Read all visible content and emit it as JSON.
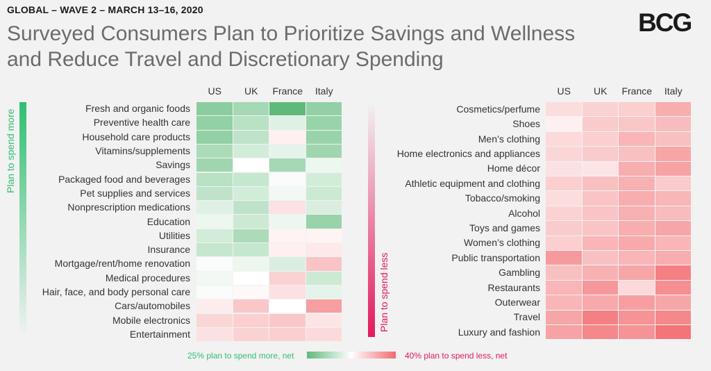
{
  "header": {
    "eyebrow": "GLOBAL – WAVE 2 – MARCH 13–16, 2020",
    "title_line1": "Surveyed Consumers Plan to Prioritize Savings and Wellness",
    "title_line2": "and Reduce Travel and Discretionary Spending",
    "logo": "BCG"
  },
  "colors": {
    "more": "#2fbf71",
    "less": "#e2195b",
    "more_strong": "#5fba7a",
    "less_strong": "#f26a6e",
    "neutral": "#ffffff"
  },
  "chart_data": [
    {
      "type": "heatmap",
      "side_label": "Plan to spend more",
      "columns": [
        "US",
        "UK",
        "France",
        "Italy"
      ],
      "rows": [
        "Fresh and organic foods",
        "Preventive health care",
        "Household care products",
        "Vitamins/supplements",
        "Savings",
        "Packaged food and beverages",
        "Pet supplies and services",
        "Nonprescription medications",
        "Education",
        "Utilities",
        "Insurance",
        "Mortgage/rent/home renovation",
        "Medical procedures",
        "Hair, face, and body personal care",
        "Cars/automobiles",
        "Mobile electronics",
        "Entertainment"
      ],
      "values": [
        [
          18,
          14,
          25,
          17
        ],
        [
          17,
          11,
          5,
          16
        ],
        [
          17,
          10,
          -4,
          16
        ],
        [
          13,
          7,
          4,
          15
        ],
        [
          15,
          0,
          14,
          3
        ],
        [
          11,
          9,
          1,
          7
        ],
        [
          10,
          7,
          2,
          8
        ],
        [
          5,
          10,
          -8,
          6
        ],
        [
          3,
          8,
          3,
          16
        ],
        [
          7,
          13,
          -3,
          -3
        ],
        [
          9,
          9,
          -4,
          -6
        ],
        [
          1,
          3,
          6,
          -16
        ],
        [
          2,
          0,
          -12,
          8
        ],
        [
          1,
          -2,
          -8,
          4
        ],
        [
          -5,
          -15,
          0,
          -26
        ],
        [
          -11,
          -13,
          -15,
          -7
        ],
        [
          -8,
          -12,
          -13,
          -10
        ]
      ],
      "scale": [
        -40,
        25
      ]
    },
    {
      "type": "heatmap",
      "side_label": "Plan to spend less",
      "columns": [
        "US",
        "UK",
        "France",
        "Italy"
      ],
      "rows": [
        "Cosmetics/perfume",
        "Shoes",
        "Men’s clothing",
        "Home electronics and appliances",
        "Home décor",
        "Athletic equipment and clothing",
        "Tobacco/smoking",
        "Alcohol",
        "Toys and games",
        "Women’s clothing",
        "Public transportation",
        "Gambling",
        "Restaurants",
        "Outerwear",
        "Travel",
        "Luxury and fashion"
      ],
      "values": [
        [
          -9,
          -12,
          -13,
          -22
        ],
        [
          -4,
          -14,
          -15,
          -18
        ],
        [
          -10,
          -13,
          -20,
          -17
        ],
        [
          -11,
          -14,
          -17,
          -24
        ],
        [
          -8,
          -7,
          -22,
          -25
        ],
        [
          -13,
          -17,
          -21,
          -14
        ],
        [
          -9,
          -16,
          -22,
          -20
        ],
        [
          -12,
          -16,
          -21,
          -18
        ],
        [
          -14,
          -16,
          -22,
          -24
        ],
        [
          -13,
          -20,
          -23,
          -20
        ],
        [
          -27,
          -17,
          -20,
          -22
        ],
        [
          -17,
          -21,
          -24,
          -34
        ],
        [
          -20,
          -28,
          -10,
          -30
        ],
        [
          -20,
          -23,
          -26,
          -24
        ],
        [
          -24,
          -34,
          -29,
          -32
        ],
        [
          -25,
          -32,
          -29,
          -37
        ]
      ],
      "scale": [
        -40,
        25
      ]
    }
  ],
  "legend": {
    "more_label": "25% plan to spend more, net",
    "less_label": "40% plan to spend less, net"
  }
}
